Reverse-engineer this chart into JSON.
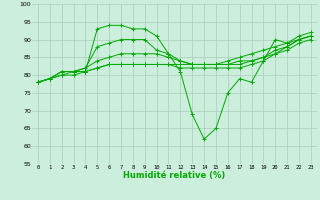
{
  "title": "",
  "xlabel": "Humidité relative (%)",
  "bg_color": "#cceedd",
  "grid_color": "#aaccbb",
  "line_color": "#00aa00",
  "xlim": [
    -0.5,
    23.5
  ],
  "ylim": [
    55,
    100
  ],
  "xticks": [
    0,
    1,
    2,
    3,
    4,
    5,
    6,
    7,
    8,
    9,
    10,
    11,
    12,
    13,
    14,
    15,
    16,
    17,
    18,
    19,
    20,
    21,
    22,
    23
  ],
  "yticks": [
    55,
    60,
    65,
    70,
    75,
    80,
    85,
    90,
    95,
    100
  ],
  "series": [
    [
      78,
      79,
      81,
      81,
      81,
      93,
      94,
      94,
      93,
      93,
      91,
      86,
      81,
      69,
      62,
      65,
      75,
      79,
      78,
      84,
      90,
      89,
      91,
      92
    ],
    [
      78,
      79,
      81,
      81,
      82,
      88,
      89,
      90,
      90,
      90,
      87,
      86,
      84,
      83,
      83,
      83,
      84,
      85,
      86,
      87,
      88,
      89,
      90,
      91
    ],
    [
      78,
      79,
      81,
      81,
      82,
      84,
      85,
      86,
      86,
      86,
      86,
      85,
      84,
      83,
      83,
      83,
      83,
      84,
      84,
      85,
      86,
      88,
      90,
      91
    ],
    [
      78,
      79,
      80,
      81,
      81,
      82,
      83,
      83,
      83,
      83,
      83,
      83,
      83,
      83,
      83,
      83,
      83,
      83,
      84,
      85,
      87,
      88,
      90,
      91
    ],
    [
      78,
      79,
      80,
      80,
      81,
      82,
      83,
      83,
      83,
      83,
      83,
      83,
      82,
      82,
      82,
      82,
      82,
      82,
      83,
      84,
      86,
      87,
      89,
      90
    ]
  ]
}
